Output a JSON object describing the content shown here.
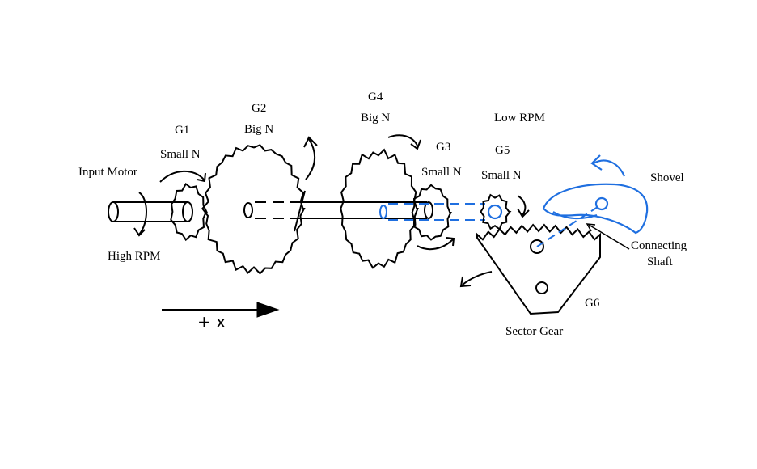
{
  "labels": {
    "input_motor": "Input Motor",
    "high_rpm": "High RPM",
    "g1": "G1",
    "g1_n": "Small N",
    "g2": "G2",
    "g2_n": "Big N",
    "g4": "G4",
    "g4_n": "Big N",
    "g3": "G3",
    "g3_n": "Small N",
    "low_rpm": "Low RPM",
    "g5": "G5",
    "g5_n": "Small N",
    "shovel": "Shovel",
    "connecting_shaft_1": "Connecting",
    "connecting_shaft_2": "Shaft",
    "g6": "G6",
    "sector_gear": "Sector Gear",
    "axis": "+ x"
  },
  "colors": {
    "ink": "#000000",
    "blue": "#1f6fe0"
  }
}
